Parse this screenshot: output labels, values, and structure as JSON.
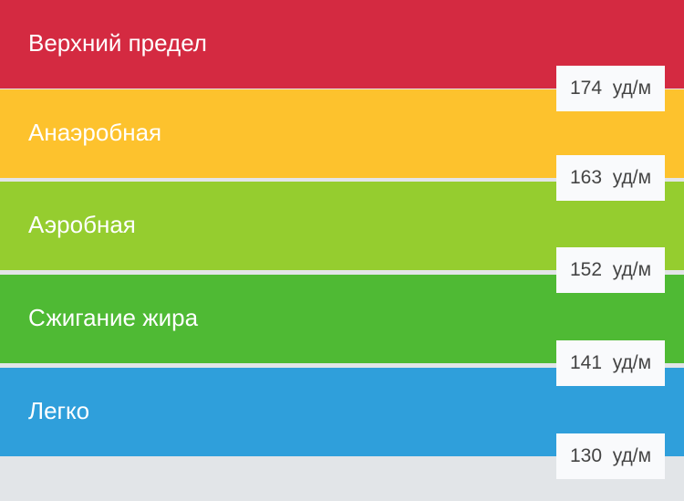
{
  "zones": [
    {
      "label": "Верхний предел",
      "color": "#d42a41"
    },
    {
      "label": "Анаэробная",
      "color": "#fdc22d"
    },
    {
      "label": "Аэробная",
      "color": "#95cd2f"
    },
    {
      "label": "Сжигание жира",
      "color": "#4fba34"
    },
    {
      "label": "Легко",
      "color": "#2f9fdb"
    }
  ],
  "thresholds": [
    {
      "value": "174",
      "unit": "уд/м"
    },
    {
      "value": "163",
      "unit": "уд/м"
    },
    {
      "value": "152",
      "unit": "уд/м"
    },
    {
      "value": "141",
      "unit": "уд/м"
    },
    {
      "value": "130",
      "unit": "уд/м"
    }
  ]
}
